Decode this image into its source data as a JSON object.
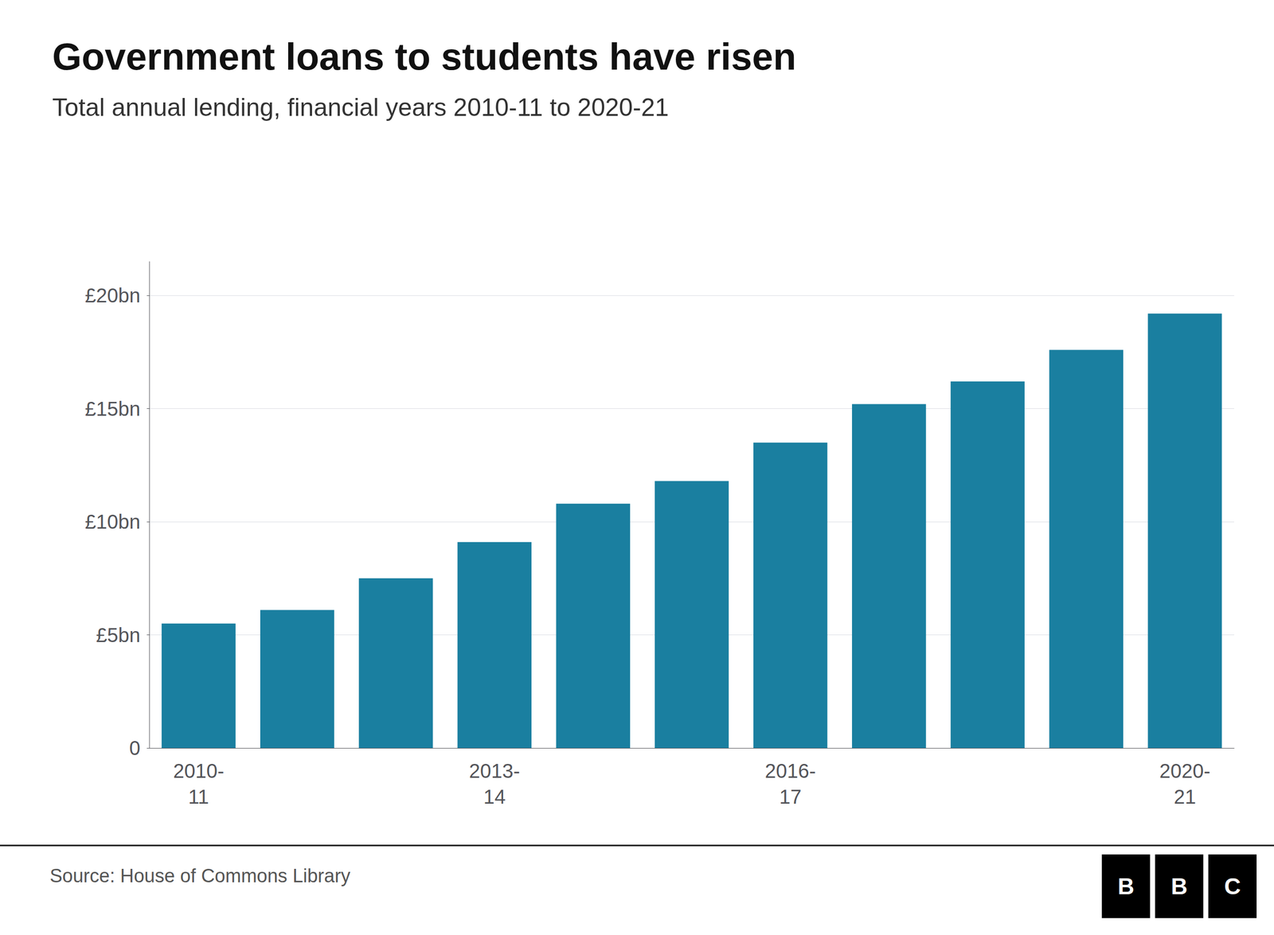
{
  "chart_data": {
    "type": "bar",
    "title": "Government loans to students have risen",
    "subtitle": "Total annual lending, financial years 2010-11 to 2020-21",
    "categories": [
      "2010-\n11",
      null,
      null,
      "2013-\n14",
      null,
      null,
      "2016-\n17",
      null,
      null,
      null,
      "2020-\n21"
    ],
    "values": [
      5.5,
      6.1,
      7.5,
      9.1,
      10.8,
      11.8,
      13.5,
      15.2,
      16.2,
      17.6,
      19.2
    ],
    "color": "#1a7fa0",
    "ylim": [
      0,
      21.5
    ],
    "yticks": [
      0,
      {
        "value": 5,
        "label": "£5bn"
      },
      {
        "value": 10,
        "label": "£10bn"
      },
      {
        "value": 15,
        "label": "£15bn"
      },
      {
        "value": 20,
        "label": "£20bn"
      }
    ],
    "grid": true,
    "source": "Source: House of Commons Library",
    "logo": [
      "B",
      "B",
      "C"
    ]
  }
}
